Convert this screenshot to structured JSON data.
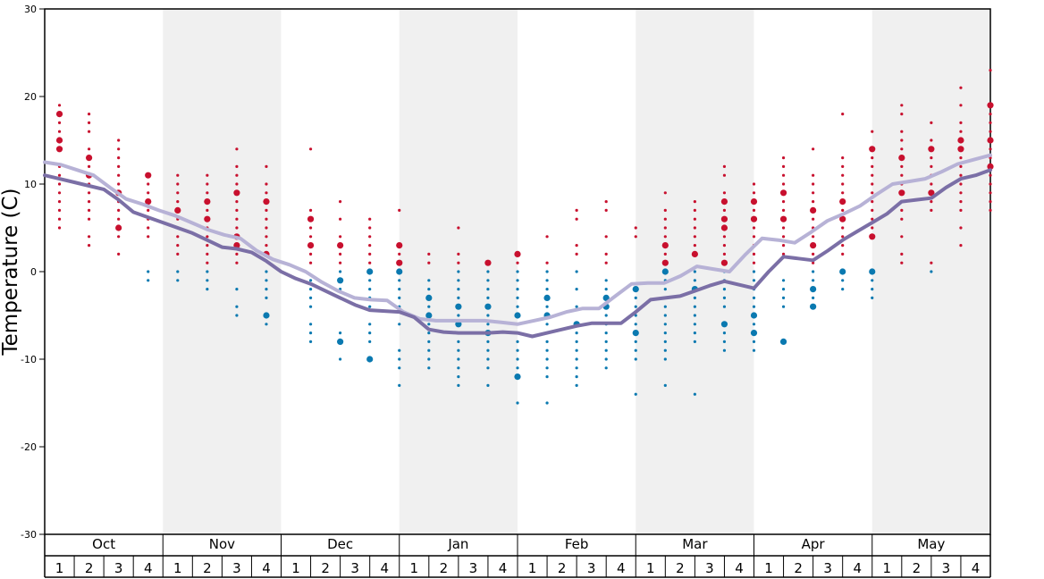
{
  "chart_data": {
    "type": "scatter",
    "title": "",
    "ylabel": "Temperature (C)",
    "ylim": [
      -30,
      30
    ],
    "yticks": [
      -30,
      -20,
      -10,
      0,
      10,
      20,
      30
    ],
    "grid": false,
    "months": [
      "Oct",
      "Nov",
      "Dec",
      "Jan",
      "Feb",
      "Mar",
      "Apr",
      "May"
    ],
    "weeks": [
      "1",
      "2",
      "3",
      "4"
    ],
    "colors": {
      "warm_dot": "#c8102e",
      "cold_dot": "#0a79b0",
      "upper_line": "#b7b2d6",
      "lower_line": "#7b6fa6",
      "band": "#f0f0f0"
    },
    "series": [
      {
        "values": [
          12.5,
          12.2,
          11.6,
          11.0,
          9.6,
          8.3,
          7.7,
          7.0,
          6.4,
          5.6,
          4.8,
          4.2,
          3.8,
          2.4,
          1.4,
          0.8,
          0.0,
          -1.2,
          -2.2,
          -3.0,
          -3.2,
          -3.3,
          -4.6,
          -5.4,
          -5.6,
          -5.6,
          -5.6,
          -5.6,
          -5.8,
          -6.0,
          -5.6,
          -5.2,
          -4.6,
          -4.2,
          -4.2,
          -2.8,
          -1.4,
          -1.3,
          -1.3,
          -0.5,
          0.6,
          0.3,
          0.0,
          2.0,
          3.8,
          3.6,
          3.3,
          4.5,
          5.8,
          6.6,
          7.5,
          8.8,
          10.0,
          10.3,
          10.6,
          11.4,
          12.3,
          12.8,
          13.3
        ]
      },
      {
        "values": [
          11.0,
          10.6,
          10.2,
          9.8,
          9.4,
          8.2,
          6.8,
          6.2,
          5.6,
          5.0,
          4.4,
          3.6,
          2.8,
          2.6,
          2.2,
          1.2,
          0.0,
          -0.8,
          -1.4,
          -2.2,
          -3.0,
          -3.8,
          -4.4,
          -4.5,
          -4.6,
          -5.2,
          -6.6,
          -6.9,
          -7.0,
          -7.0,
          -7.0,
          -6.9,
          -7.0,
          -7.4,
          -7.0,
          -6.6,
          -6.2,
          -5.9,
          -5.9,
          -5.9,
          -4.6,
          -3.2,
          -3.0,
          -2.8,
          -2.2,
          -1.6,
          -1.1,
          -1.5,
          -1.9,
          0.0,
          1.7,
          1.5,
          1.3,
          2.4,
          3.6,
          4.6,
          5.6,
          6.6,
          8.0,
          8.2,
          8.4,
          9.6,
          10.6,
          11.0,
          11.6
        ]
      }
    ],
    "dots": [
      {
        "x": 0,
        "y": [
          19,
          18,
          17,
          16,
          15,
          14,
          12,
          11,
          10,
          9,
          8,
          7,
          6,
          5
        ],
        "big": [
          18,
          15,
          14
        ],
        "color": "warm"
      },
      {
        "x": 1,
        "y": [
          18,
          17,
          16,
          14,
          13,
          12,
          11,
          10,
          9,
          8,
          7,
          6,
          4,
          3
        ],
        "big": [
          13,
          11
        ],
        "color": "warm"
      },
      {
        "x": 2,
        "y": [
          15,
          14,
          13,
          12,
          11,
          10,
          9,
          8,
          7,
          6,
          5,
          4,
          2
        ],
        "big": [
          9,
          5
        ],
        "color": "warm"
      },
      {
        "x": 3,
        "y": [
          11,
          10,
          9,
          8,
          7,
          6,
          5,
          4
        ],
        "big": [
          11,
          8
        ],
        "color": "warm"
      },
      {
        "x": 3,
        "y": [
          0,
          -1
        ],
        "big": [],
        "color": "cold"
      },
      {
        "x": 4,
        "y": [
          11,
          10,
          9,
          8,
          7,
          6,
          5,
          4,
          3,
          2
        ],
        "big": [
          7
        ],
        "color": "warm"
      },
      {
        "x": 4,
        "y": [
          0,
          -1
        ],
        "big": [],
        "color": "cold"
      },
      {
        "x": 5,
        "y": [
          11,
          10,
          9,
          8,
          7,
          6,
          5,
          4,
          3,
          2,
          1
        ],
        "big": [
          8,
          6
        ],
        "color": "warm"
      },
      {
        "x": 5,
        "y": [
          0,
          -1,
          -2
        ],
        "big": [],
        "color": "cold"
      },
      {
        "x": 6,
        "y": [
          14,
          12,
          11,
          10,
          9,
          8,
          7,
          6,
          5,
          4,
          3,
          2,
          1
        ],
        "big": [
          9,
          4,
          3
        ],
        "color": "warm"
      },
      {
        "x": 6,
        "y": [
          -2,
          -4,
          -5
        ],
        "big": [],
        "color": "cold"
      },
      {
        "x": 7,
        "y": [
          12,
          10,
          9,
          8,
          7,
          6,
          5,
          4,
          3,
          2
        ],
        "big": [
          8,
          2
        ],
        "color": "warm"
      },
      {
        "x": 7,
        "y": [
          0,
          -1,
          -2,
          -3,
          -5,
          -6
        ],
        "big": [
          -5
        ],
        "color": "cold"
      },
      {
        "x": 8.5,
        "y": [
          14,
          7,
          6,
          5,
          4,
          3,
          2,
          1
        ],
        "big": [
          6,
          3
        ],
        "color": "warm"
      },
      {
        "x": 8.5,
        "y": [
          -1,
          -2,
          -3,
          -4,
          -6,
          -7,
          -8
        ],
        "big": [],
        "color": "cold"
      },
      {
        "x": 9.5,
        "y": [
          8,
          6,
          4,
          3,
          2,
          1
        ],
        "big": [
          3
        ],
        "color": "warm"
      },
      {
        "x": 9.5,
        "y": [
          0,
          -1,
          -2,
          -3,
          -7,
          -8,
          -10
        ],
        "big": [
          -1,
          -8
        ],
        "color": "cold"
      },
      {
        "x": 10.5,
        "y": [
          6,
          5,
          4,
          3,
          2,
          1
        ],
        "big": [],
        "color": "warm"
      },
      {
        "x": 10.5,
        "y": [
          0,
          -1,
          -2,
          -3,
          -4,
          -6,
          -7,
          -8,
          -10
        ],
        "big": [
          0,
          -10
        ],
        "color": "cold"
      },
      {
        "x": 11.5,
        "y": [
          7,
          3,
          2,
          1
        ],
        "big": [
          3,
          1
        ],
        "color": "warm"
      },
      {
        "x": 11.5,
        "y": [
          0,
          -1,
          -2,
          -3,
          -4,
          -6,
          -9,
          -10,
          -11,
          -13
        ],
        "big": [
          0
        ],
        "color": "cold"
      },
      {
        "x": 12.5,
        "y": [
          2,
          1
        ],
        "big": [],
        "color": "warm"
      },
      {
        "x": 12.5,
        "y": [
          -1,
          -2,
          -3,
          -4,
          -5,
          -6,
          -7,
          -8,
          -9,
          -10,
          -11
        ],
        "big": [
          -3,
          -5
        ],
        "color": "cold"
      },
      {
        "x": 13.5,
        "y": [
          5,
          2,
          1
        ],
        "big": [],
        "color": "warm"
      },
      {
        "x": 13.5,
        "y": [
          0,
          -1,
          -2,
          -3,
          -4,
          -5,
          -6,
          -7,
          -8,
          -9,
          -10,
          -11,
          -12,
          -13
        ],
        "big": [
          -4,
          -6
        ],
        "color": "cold"
      },
      {
        "x": 14.5,
        "y": [
          1
        ],
        "big": [
          1
        ],
        "color": "warm"
      },
      {
        "x": 14.5,
        "y": [
          0,
          -1,
          -2,
          -3,
          -4,
          -5,
          -6,
          -7,
          -8,
          -9,
          -10,
          -11,
          -13
        ],
        "big": [
          -4,
          -7
        ],
        "color": "cold"
      },
      {
        "x": 15.5,
        "y": [
          2,
          1
        ],
        "big": [
          2
        ],
        "color": "warm"
      },
      {
        "x": 15.5,
        "y": [
          0,
          -1,
          -2,
          -3,
          -4,
          -5,
          -6,
          -7,
          -8,
          -9,
          -10,
          -11,
          -12,
          -15
        ],
        "big": [
          -5,
          -12
        ],
        "color": "cold"
      },
      {
        "x": 16.5,
        "y": [
          4,
          1
        ],
        "big": [],
        "color": "warm"
      },
      {
        "x": 16.5,
        "y": [
          0,
          -1,
          -2,
          -3,
          -4,
          -5,
          -6,
          -7,
          -8,
          -9,
          -10,
          -11,
          -12,
          -15
        ],
        "big": [
          -3,
          -5
        ],
        "color": "cold"
      },
      {
        "x": 17.5,
        "y": [
          7,
          6,
          3,
          2
        ],
        "big": [],
        "color": "warm"
      },
      {
        "x": 17.5,
        "y": [
          0,
          -2,
          -4,
          -6,
          -7,
          -8,
          -9,
          -10,
          -11,
          -12,
          -13
        ],
        "big": [
          -6
        ],
        "color": "cold"
      },
      {
        "x": 18.5,
        "y": [
          8,
          7,
          4,
          2,
          1
        ],
        "big": [],
        "color": "warm"
      },
      {
        "x": 18.5,
        "y": [
          -1,
          -2,
          -3,
          -4,
          -5,
          -6,
          -7,
          -8,
          -9,
          -10,
          -11
        ],
        "big": [
          -3,
          -4
        ],
        "color": "cold"
      },
      {
        "x": 19.5,
        "y": [
          5,
          4
        ],
        "big": [],
        "color": "warm"
      },
      {
        "x": 19.5,
        "y": [
          -2,
          -3,
          -4,
          -5,
          -6,
          -7,
          -8,
          -9,
          -10,
          -14
        ],
        "big": [
          -2,
          -7
        ],
        "color": "cold"
      },
      {
        "x": 20.5,
        "y": [
          9,
          7,
          6,
          5,
          4,
          3,
          2,
          1
        ],
        "big": [
          3,
          1
        ],
        "color": "warm"
      },
      {
        "x": 20.5,
        "y": [
          0,
          -1,
          -2,
          -3,
          -4,
          -5,
          -6,
          -7,
          -8,
          -9,
          -10,
          -13
        ],
        "big": [
          0
        ],
        "color": "cold"
      },
      {
        "x": 21.5,
        "y": [
          8,
          7,
          6,
          5,
          4,
          3,
          2
        ],
        "big": [
          2
        ],
        "color": "warm"
      },
      {
        "x": 21.5,
        "y": [
          0,
          -1,
          -2,
          -3,
          -4,
          -5,
          -6,
          -7,
          -8,
          -14
        ],
        "big": [
          -2
        ],
        "color": "cold"
      },
      {
        "x": 22.5,
        "y": [
          12,
          11,
          9,
          8,
          7,
          6,
          5,
          4,
          3,
          2,
          1
        ],
        "big": [
          8,
          6,
          5,
          1
        ],
        "color": "warm"
      },
      {
        "x": 22.5,
        "y": [
          0,
          -1,
          -2,
          -3,
          -4,
          -6,
          -7,
          -8,
          -9
        ],
        "big": [
          -6
        ],
        "color": "cold"
      },
      {
        "x": 23.5,
        "y": [
          10,
          9,
          8,
          7,
          6,
          5,
          4,
          3,
          2,
          1
        ],
        "big": [
          8,
          6
        ],
        "color": "warm"
      },
      {
        "x": 23.5,
        "y": [
          0,
          -1,
          -2,
          -3,
          -4,
          -5,
          -6,
          -7,
          -8,
          -9
        ],
        "big": [
          -5,
          -7
        ],
        "color": "cold"
      },
      {
        "x": 24.5,
        "y": [
          13,
          12,
          11,
          10,
          9,
          8,
          7,
          6,
          5,
          4,
          3,
          2
        ],
        "big": [
          9,
          6
        ],
        "color": "warm"
      },
      {
        "x": 24.5,
        "y": [
          -1,
          -2,
          -3,
          -4,
          -8
        ],
        "big": [
          -8
        ],
        "color": "cold"
      },
      {
        "x": 25.5,
        "y": [
          14,
          11,
          10,
          9,
          8,
          7,
          6,
          5,
          4,
          3,
          2,
          1
        ],
        "big": [
          7,
          3
        ],
        "color": "warm"
      },
      {
        "x": 25.5,
        "y": [
          0,
          -1,
          -2,
          -3,
          -4
        ],
        "big": [
          -2,
          -4
        ],
        "color": "cold"
      },
      {
        "x": 26.5,
        "y": [
          18,
          13,
          12,
          11,
          10,
          9,
          8,
          7,
          6,
          5,
          4,
          3,
          2
        ],
        "big": [
          8,
          6
        ],
        "color": "warm"
      },
      {
        "x": 26.5,
        "y": [
          0,
          -1,
          -2
        ],
        "big": [
          0
        ],
        "color": "cold"
      },
      {
        "x": 27.5,
        "y": [
          16,
          14,
          13,
          12,
          11,
          10,
          9,
          8,
          7,
          6,
          5,
          4
        ],
        "big": [
          14,
          4
        ],
        "color": "warm"
      },
      {
        "x": 27.5,
        "y": [
          0,
          -1,
          -2,
          -3
        ],
        "big": [
          0
        ],
        "color": "cold"
      },
      {
        "x": 28.5,
        "y": [
          19,
          18,
          16,
          15,
          14,
          13,
          12,
          11,
          10,
          9,
          8,
          7,
          6,
          4,
          2,
          1
        ],
        "big": [
          13,
          9
        ],
        "color": "warm"
      },
      {
        "x": 29.5,
        "y": [
          17,
          15,
          14,
          13,
          12,
          11,
          10,
          9,
          8,
          7,
          1
        ],
        "big": [
          14,
          9
        ],
        "color": "warm"
      },
      {
        "x": 29.5,
        "y": [
          0
        ],
        "big": [],
        "color": "cold"
      },
      {
        "x": 30.5,
        "y": [
          21,
          19,
          17,
          16,
          15,
          14,
          13,
          12,
          11,
          10,
          9,
          8,
          7,
          5,
          3
        ],
        "big": [
          15,
          14
        ],
        "color": "warm"
      },
      {
        "x": 31.5,
        "y": [
          23,
          19,
          18,
          17,
          16,
          15,
          14,
          13,
          12,
          11,
          10,
          9,
          8,
          7
        ],
        "big": [
          19,
          15,
          12
        ],
        "color": "warm"
      }
    ]
  }
}
